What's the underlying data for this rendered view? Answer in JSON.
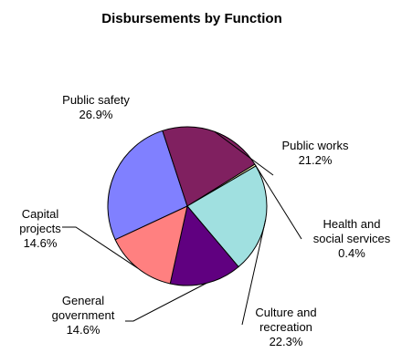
{
  "chart_data": {
    "type": "pie",
    "title": "Disbursements by Function",
    "slices": [
      {
        "label": "Public safety",
        "value": 26.9,
        "value_label": "26.9%",
        "color": "#8080FF"
      },
      {
        "label": "Public works",
        "value": 21.2,
        "value_label": "21.2%",
        "color": "#802060"
      },
      {
        "label": "Health and social services",
        "value": 0.4,
        "value_label": "0.4%",
        "color": "#FFFFC0"
      },
      {
        "label": "Culture and recreation",
        "value": 22.3,
        "value_label": "22.3%",
        "color": "#A0E0E0"
      },
      {
        "label": "General government",
        "value": 14.6,
        "value_label": "14.6%",
        "color": "#600080"
      },
      {
        "label": "Capital projects",
        "value": 14.6,
        "value_label": "14.6%",
        "color": "#FF8080"
      }
    ],
    "legend": "none"
  }
}
